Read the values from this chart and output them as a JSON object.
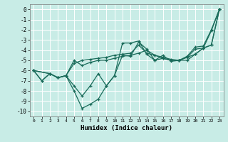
{
  "xlabel": "Humidex (Indice chaleur)",
  "ylabel": "",
  "xlim": [
    -0.5,
    23.5
  ],
  "ylim": [
    -10.5,
    0.5
  ],
  "xticks": [
    0,
    1,
    2,
    3,
    4,
    5,
    6,
    7,
    8,
    9,
    10,
    11,
    12,
    13,
    14,
    15,
    16,
    17,
    18,
    19,
    20,
    21,
    22,
    23
  ],
  "yticks": [
    0,
    -1,
    -2,
    -3,
    -4,
    -5,
    -6,
    -7,
    -8,
    -9,
    -10
  ],
  "bg_color": "#c8ece6",
  "grid_color": "#ffffff",
  "line_color": "#1a6b5a",
  "lines": [
    {
      "x": [
        0,
        1,
        2,
        3,
        4,
        5,
        6,
        7,
        8,
        9,
        10,
        11,
        12,
        13,
        14,
        15,
        16,
        17,
        18,
        19,
        20,
        21,
        22,
        23
      ],
      "y": [
        -6.0,
        -7.0,
        -6.3,
        -6.7,
        -6.5,
        -8.0,
        -9.7,
        -9.3,
        -8.8,
        -7.5,
        -6.5,
        -3.3,
        -3.3,
        -3.1,
        -4.4,
        -5.0,
        -4.8,
        -5.0,
        -5.0,
        -4.6,
        -3.7,
        -3.6,
        -2.0,
        0.0
      ]
    },
    {
      "x": [
        0,
        1,
        2,
        3,
        4,
        5,
        6,
        7,
        8,
        9,
        10,
        11,
        12,
        13,
        14,
        15,
        16,
        17,
        18,
        19,
        20,
        21,
        22,
        23
      ],
      "y": [
        -6.0,
        -7.0,
        -6.3,
        -6.7,
        -6.5,
        -7.5,
        -8.5,
        -7.5,
        -6.3,
        -7.5,
        -6.5,
        -4.5,
        -4.6,
        -3.2,
        -3.9,
        -5.0,
        -4.5,
        -5.1,
        -5.0,
        -4.7,
        -3.9,
        -3.8,
        -2.1,
        0.0
      ]
    },
    {
      "x": [
        0,
        2,
        3,
        4,
        5,
        6,
        7,
        8,
        9,
        10,
        11,
        12,
        13,
        14,
        15,
        16,
        17,
        18,
        19,
        20,
        21,
        22,
        23
      ],
      "y": [
        -6.0,
        -6.3,
        -6.7,
        -6.5,
        -5.0,
        -5.5,
        -5.2,
        -5.0,
        -5.0,
        -4.8,
        -4.6,
        -4.5,
        -4.3,
        -4.0,
        -4.5,
        -4.7,
        -4.9,
        -5.0,
        -5.0,
        -4.4,
        -3.8,
        -3.5,
        0.0
      ]
    },
    {
      "x": [
        0,
        2,
        3,
        4,
        5,
        6,
        7,
        8,
        9,
        10,
        11,
        12,
        13,
        14,
        15,
        16,
        17,
        18,
        19,
        20,
        21,
        22,
        23
      ],
      "y": [
        -6.0,
        -6.3,
        -6.7,
        -6.5,
        -5.3,
        -5.0,
        -4.9,
        -4.8,
        -4.7,
        -4.5,
        -4.4,
        -4.3,
        -3.5,
        -4.3,
        -4.5,
        -4.8,
        -5.0,
        -5.0,
        -4.7,
        -4.4,
        -3.8,
        -3.5,
        0.0
      ]
    }
  ]
}
